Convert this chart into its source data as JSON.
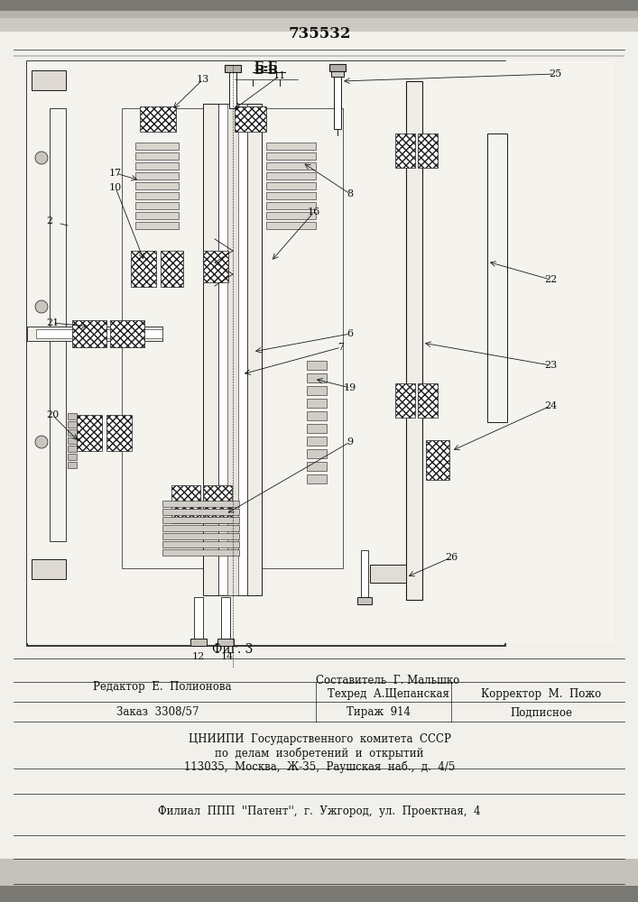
{
  "patent_number": "735532",
  "fig_label": "Фиг. 3",
  "section_label": "Б-Б",
  "bg_color_top": "#c8c5be",
  "bg_color_main": "#f2f0eb",
  "footer": {
    "editor": "Редактор  Е.  Полионова",
    "compiler": "Составитель  Г. Мальшко",
    "techred": "Техред  А.Щепанская",
    "corrector": "Корректор  М.  Пожо",
    "order": "Заказ  3308/57",
    "tirazh": "Тираж  914",
    "podpisnoe": "Подписное",
    "tsniip1": "ЦНИИПИ  Государственного  комитета  СССР",
    "tsniip2": "по  делам  изобретений  и  открытий",
    "tsniip3": "113035,  Москва,  Ж-35,  Раушская  наб.,  д.  4/5",
    "filial": "Филиал  ППП  ''Патент'',  г.  Ужгород,  ул.  Проектная,  4"
  }
}
